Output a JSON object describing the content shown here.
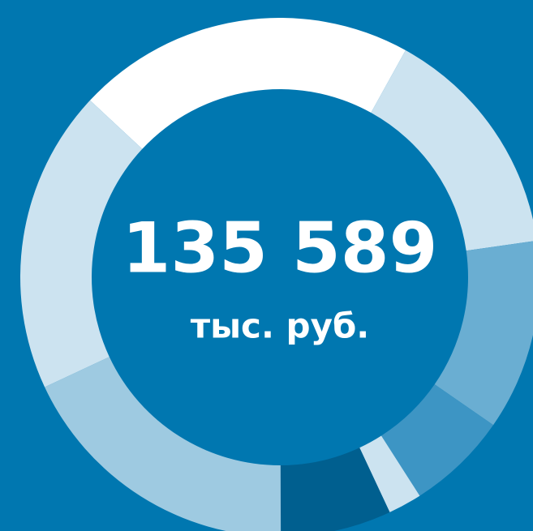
{
  "chart_data": {
    "type": "donut",
    "center_value": "135 589",
    "center_unit": "тыс. руб.",
    "categories": [
      null,
      null,
      null,
      null,
      null,
      null,
      null,
      null
    ],
    "values": [
      21.1,
      14.7,
      11.9,
      6.3,
      2.1,
      6.9,
      18.1,
      18.9
    ],
    "colors": [
      "#ffffff",
      "#cce3f0",
      "#6aaed2",
      "#3d95c4",
      "#cce3f0",
      "#005f8f",
      "#9ecae1",
      "#cce3f0"
    ]
  }
}
